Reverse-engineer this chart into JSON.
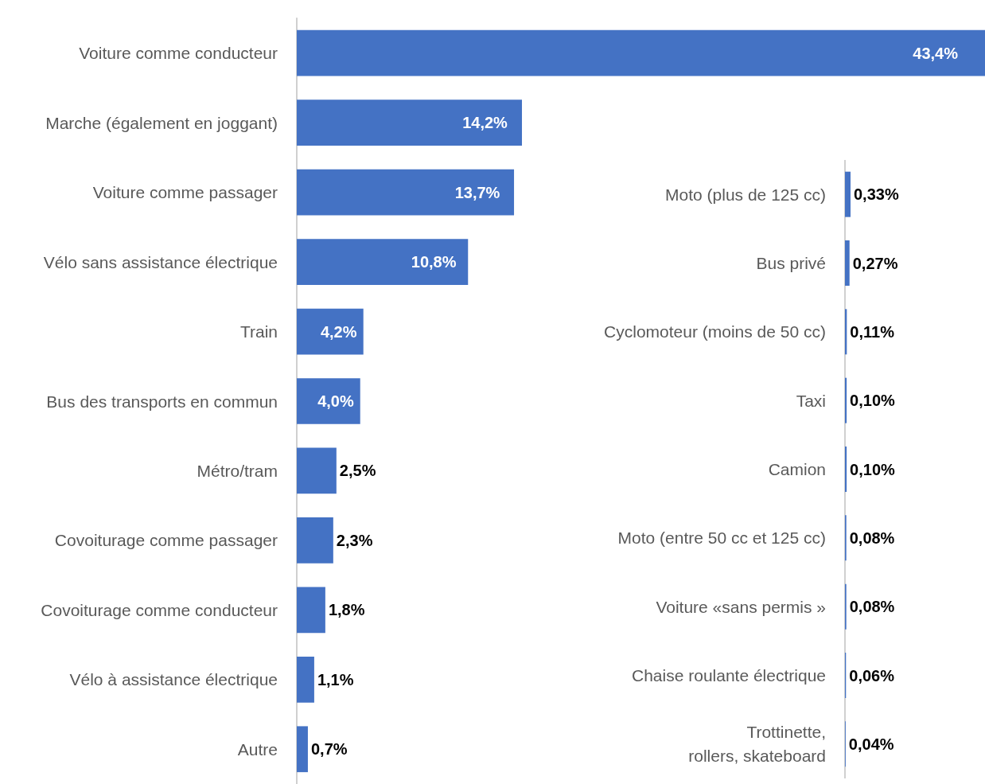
{
  "chart_data": [
    {
      "type": "bar",
      "orientation": "horizontal",
      "color": "#4472c4",
      "categories": [
        "Voiture comme conducteur",
        "Marche (également en joggant)",
        "Voiture comme passager",
        "Vélo sans assistance électrique",
        "Train",
        "Bus des transports en commun",
        "Métro/tram",
        "Covoiturage comme passager",
        "Covoiturage comme conducteur",
        "Vélo à assistance électrique",
        "Autre"
      ],
      "values": [
        43.4,
        14.2,
        13.7,
        10.8,
        4.2,
        4.0,
        2.5,
        2.3,
        1.8,
        1.1,
        0.7
      ],
      "value_labels": [
        "43,4%",
        "14,2%",
        "13,7%",
        "10,8%",
        "4,2%",
        "4,0%",
        "2,5%",
        "2,3%",
        "1,8%",
        "1,1%",
        "0,7%"
      ]
    },
    {
      "type": "bar",
      "orientation": "horizontal",
      "color": "#4472c4",
      "categories": [
        "Moto (plus de 125 cc)",
        "Bus privé",
        "Cyclomoteur (moins de 50 cc)",
        "Taxi",
        "Camion",
        "Moto (entre 50 cc et 125 cc)",
        "Voiture «sans permis »",
        "Chaise roulante électrique",
        "Trottinette,\nrollers, skateboard"
      ],
      "values": [
        0.33,
        0.27,
        0.11,
        0.1,
        0.1,
        0.08,
        0.08,
        0.06,
        0.04
      ],
      "value_labels": [
        "0,33%",
        "0,27%",
        "0,11%",
        "0,10%",
        "0,10%",
        "0,08%",
        "0,08%",
        "0,06%",
        "0,04%"
      ]
    }
  ]
}
